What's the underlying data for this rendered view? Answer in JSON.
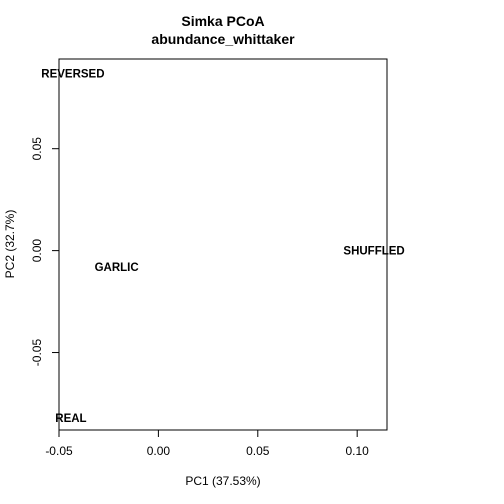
{
  "chart_data": {
    "type": "scatter",
    "title": "Simka PCoA",
    "subtitle": "abundance_whittaker",
    "xlabel": "PC1 (37.53%)",
    "ylabel": "PC2 (32.7%)",
    "xlim": [
      -0.05,
      0.115
    ],
    "ylim": [
      -0.088,
      0.094
    ],
    "xticks": [
      {
        "value": -0.05,
        "label": "-0.05"
      },
      {
        "value": 0.0,
        "label": "0.00"
      },
      {
        "value": 0.05,
        "label": "0.05"
      },
      {
        "value": 0.1,
        "label": "0.10"
      }
    ],
    "yticks": [
      {
        "value": -0.05,
        "label": "-0.05"
      },
      {
        "value": 0.0,
        "label": "0.00"
      },
      {
        "value": 0.05,
        "label": "0.05"
      }
    ],
    "points": [
      {
        "label": "REVERSED",
        "x": -0.043,
        "y": 0.087
      },
      {
        "label": "SHUFFLED",
        "x": 0.1085,
        "y": 0.0
      },
      {
        "label": "GARLIC",
        "x": -0.021,
        "y": -0.008
      },
      {
        "label": "REAL",
        "x": -0.044,
        "y": -0.082
      }
    ],
    "grid": false,
    "legend": "none"
  }
}
